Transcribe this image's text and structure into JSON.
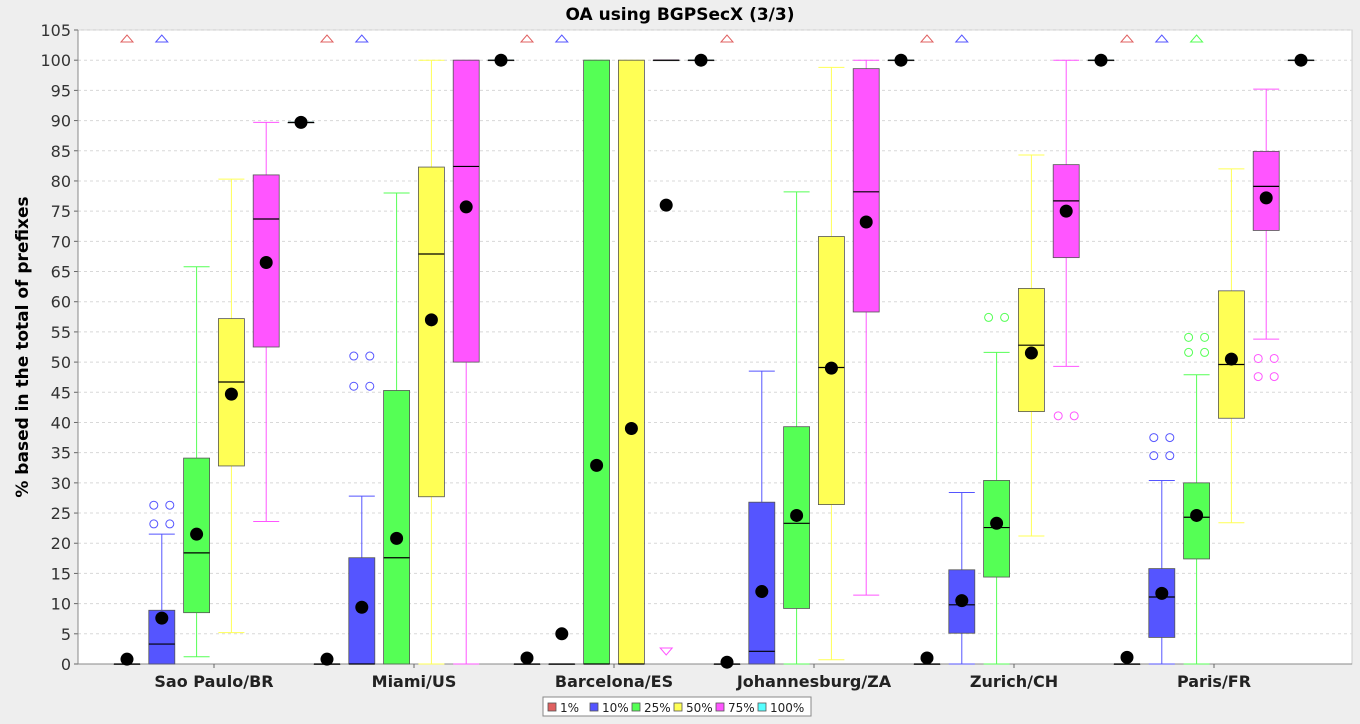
{
  "chart_data": {
    "type": "boxplot",
    "title": "OA using BGPSecX  (3/3)",
    "xlabel": "",
    "ylabel": "% based in the total of prefixes",
    "ylim": [
      0,
      105
    ],
    "yticks": [
      0,
      5,
      10,
      15,
      20,
      25,
      30,
      35,
      40,
      45,
      50,
      55,
      60,
      65,
      70,
      75,
      80,
      85,
      90,
      95,
      100,
      105
    ],
    "grid": true,
    "legend_position": "bottom",
    "categories": [
      "Sao Paulo/BR",
      "Miami/US",
      "Barcelona/ES",
      "Johannesburg/ZA",
      "Zurich/CH",
      "Paris/FR"
    ],
    "series": [
      {
        "name": "1%",
        "color": "#e06060",
        "boxes": [
          {
            "q1": 0,
            "median": 0,
            "q3": 0,
            "whisker_low": 0,
            "whisker_high": 0,
            "mean": 0.8,
            "outliers": [],
            "above_range": true,
            "below_range": false
          },
          {
            "q1": 0,
            "median": 0,
            "q3": 0,
            "whisker_low": 0,
            "whisker_high": 0,
            "mean": 0.8,
            "outliers": [],
            "above_range": true,
            "below_range": false
          },
          {
            "q1": 0,
            "median": 0,
            "q3": 0,
            "whisker_low": 0,
            "whisker_high": 0,
            "mean": 1.0,
            "outliers": [],
            "above_range": true,
            "below_range": false
          },
          {
            "q1": 0,
            "median": 0,
            "q3": 0,
            "whisker_low": 0,
            "whisker_high": 0,
            "mean": 0.3,
            "outliers": [],
            "above_range": true,
            "below_range": false
          },
          {
            "q1": 0,
            "median": 0,
            "q3": 0,
            "whisker_low": 0,
            "whisker_high": 0,
            "mean": 1.0,
            "outliers": [],
            "above_range": true,
            "below_range": false
          },
          {
            "q1": 0,
            "median": 0,
            "q3": 0,
            "whisker_low": 0,
            "whisker_high": 0,
            "mean": 1.1,
            "outliers": [],
            "above_range": true,
            "below_range": false
          }
        ]
      },
      {
        "name": "10%",
        "color": "#5555ff",
        "boxes": [
          {
            "q1": 0,
            "median": 3.3,
            "q3": 8.9,
            "whisker_low": 0,
            "whisker_high": 21.5,
            "mean": 7.6,
            "outliers": [
              23.2,
              26.3
            ],
            "above_range": true,
            "below_range": false
          },
          {
            "q1": 0,
            "median": 0,
            "q3": 17.6,
            "whisker_low": 0,
            "whisker_high": 27.8,
            "mean": 9.4,
            "outliers": [
              46.0,
              51.0
            ],
            "above_range": true,
            "below_range": false
          },
          {
            "q1": 0,
            "median": 0,
            "q3": 0,
            "whisker_low": 0,
            "whisker_high": 0,
            "mean": 5.0,
            "outliers": [],
            "above_range": true,
            "below_range": false
          },
          {
            "q1": 0,
            "median": 2.1,
            "q3": 26.8,
            "whisker_low": 0,
            "whisker_high": 48.5,
            "mean": 12.0,
            "outliers": [],
            "above_range": false,
            "below_range": false
          },
          {
            "q1": 5.1,
            "median": 9.8,
            "q3": 15.6,
            "whisker_low": 0,
            "whisker_high": 28.4,
            "mean": 10.5,
            "outliers": [],
            "above_range": true,
            "below_range": false
          },
          {
            "q1": 4.4,
            "median": 11.1,
            "q3": 15.8,
            "whisker_low": 0,
            "whisker_high": 30.4,
            "mean": 11.7,
            "outliers": [
              34.5,
              37.5
            ],
            "above_range": true,
            "below_range": false
          }
        ]
      },
      {
        "name": "25%",
        "color": "#55ff55",
        "boxes": [
          {
            "q1": 8.5,
            "median": 18.4,
            "q3": 34.1,
            "whisker_low": 1.2,
            "whisker_high": 65.8,
            "mean": 21.5,
            "outliers": [],
            "above_range": false,
            "below_range": false
          },
          {
            "q1": 0,
            "median": 17.6,
            "q3": 45.3,
            "whisker_low": 0,
            "whisker_high": 78.0,
            "mean": 20.8,
            "outliers": [],
            "above_range": false,
            "below_range": false
          },
          {
            "q1": 0,
            "median": 0,
            "q3": 100,
            "whisker_low": 0,
            "whisker_high": 100,
            "mean": 32.9,
            "outliers": [],
            "above_range": false,
            "below_range": false
          },
          {
            "q1": 9.2,
            "median": 23.3,
            "q3": 39.3,
            "whisker_low": 0,
            "whisker_high": 78.2,
            "mean": 24.6,
            "outliers": [],
            "above_range": false,
            "below_range": false
          },
          {
            "q1": 14.4,
            "median": 22.6,
            "q3": 30.4,
            "whisker_low": 0,
            "whisker_high": 51.6,
            "mean": 23.3,
            "outliers": [
              57.4
            ],
            "above_range": false,
            "below_range": false
          },
          {
            "q1": 17.4,
            "median": 24.3,
            "q3": 30.0,
            "whisker_low": 0,
            "whisker_high": 47.9,
            "mean": 24.6,
            "outliers": [
              51.6,
              54.1
            ],
            "above_range": true,
            "below_range": false
          }
        ]
      },
      {
        "name": "50%",
        "color": "#ffff55",
        "boxes": [
          {
            "q1": 32.8,
            "median": 46.7,
            "q3": 57.2,
            "whisker_low": 5.2,
            "whisker_high": 80.3,
            "mean": 44.7,
            "outliers": [],
            "above_range": false,
            "below_range": false
          },
          {
            "q1": 27.7,
            "median": 67.9,
            "q3": 82.3,
            "whisker_low": 0,
            "whisker_high": 100,
            "mean": 57.0,
            "outliers": [],
            "above_range": false,
            "below_range": false
          },
          {
            "q1": 0,
            "median": 0,
            "q3": 100,
            "whisker_low": 0,
            "whisker_high": 100,
            "mean": 39.0,
            "outliers": [],
            "above_range": false,
            "below_range": false
          },
          {
            "q1": 26.4,
            "median": 49.1,
            "q3": 70.8,
            "whisker_low": 0.7,
            "whisker_high": 98.8,
            "mean": 49.0,
            "outliers": [],
            "above_range": false,
            "below_range": false
          },
          {
            "q1": 41.8,
            "median": 52.8,
            "q3": 62.2,
            "whisker_low": 21.2,
            "whisker_high": 84.3,
            "mean": 51.5,
            "outliers": [],
            "above_range": false,
            "below_range": false
          },
          {
            "q1": 40.7,
            "median": 49.6,
            "q3": 61.8,
            "whisker_low": 23.4,
            "whisker_high": 82.0,
            "mean": 50.5,
            "outliers": [],
            "above_range": false,
            "below_range": false
          }
        ]
      },
      {
        "name": "75%",
        "color": "#ff55ff",
        "boxes": [
          {
            "q1": 52.5,
            "median": 73.7,
            "q3": 81.0,
            "whisker_low": 23.6,
            "whisker_high": 89.7,
            "mean": 66.5,
            "outliers": [],
            "above_range": false,
            "below_range": false
          },
          {
            "q1": 50.0,
            "median": 82.4,
            "q3": 100,
            "whisker_low": 0,
            "whisker_high": 100,
            "mean": 75.7,
            "outliers": [],
            "above_range": false,
            "below_range": false
          },
          {
            "q1": 100,
            "median": 100,
            "q3": 100,
            "whisker_low": 100,
            "whisker_high": 100,
            "mean": 76.0,
            "outliers": [],
            "above_range": false,
            "below_range": true
          },
          {
            "q1": 58.3,
            "median": 78.2,
            "q3": 98.6,
            "whisker_low": 11.4,
            "whisker_high": 100,
            "mean": 73.2,
            "outliers": [],
            "above_range": false,
            "below_range": false
          },
          {
            "q1": 67.3,
            "median": 76.7,
            "q3": 82.7,
            "whisker_low": 49.3,
            "whisker_high": 100,
            "mean": 75.0,
            "outliers": [
              41.1
            ],
            "above_range": false,
            "below_range": false
          },
          {
            "q1": 71.8,
            "median": 79.1,
            "q3": 84.9,
            "whisker_low": 53.8,
            "whisker_high": 95.2,
            "mean": 77.2,
            "outliers": [
              47.6,
              50.6
            ],
            "above_range": false,
            "below_range": false
          }
        ]
      },
      {
        "name": "100%",
        "color": "#55ffff",
        "boxes": [
          {
            "q1": 89.7,
            "median": 89.7,
            "q3": 89.7,
            "whisker_low": 89.7,
            "whisker_high": 89.7,
            "mean": 89.7,
            "outliers": [],
            "above_range": false,
            "below_range": false
          },
          {
            "q1": 100,
            "median": 100,
            "q3": 100,
            "whisker_low": 100,
            "whisker_high": 100,
            "mean": 100,
            "outliers": [],
            "above_range": false,
            "below_range": false
          },
          {
            "q1": 100,
            "median": 100,
            "q3": 100,
            "whisker_low": 100,
            "whisker_high": 100,
            "mean": 100,
            "outliers": [],
            "above_range": false,
            "below_range": false
          },
          {
            "q1": 100,
            "median": 100,
            "q3": 100,
            "whisker_low": 100,
            "whisker_high": 100,
            "mean": 100,
            "outliers": [],
            "above_range": false,
            "below_range": false
          },
          {
            "q1": 100,
            "median": 100,
            "q3": 100,
            "whisker_low": 100,
            "whisker_high": 100,
            "mean": 100,
            "outliers": [],
            "above_range": false,
            "below_range": false
          },
          {
            "q1": 100,
            "median": 100,
            "q3": 100,
            "whisker_low": 100,
            "whisker_high": 100,
            "mean": 100,
            "outliers": [],
            "above_range": false,
            "below_range": false
          }
        ]
      }
    ]
  }
}
